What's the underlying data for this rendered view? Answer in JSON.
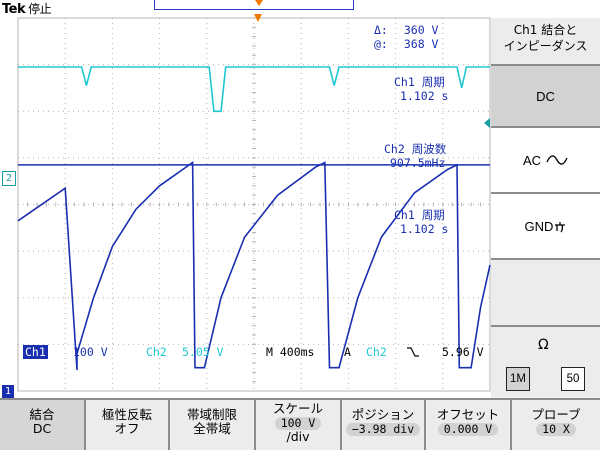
{
  "header": {
    "brand": "Tek",
    "status": "停止"
  },
  "readouts": {
    "delta_label": "Δ:",
    "delta_value": "360 V",
    "at_label": "@:",
    "at_value": "368 V",
    "period_top_label": "Ch1 周期",
    "period_top_value": "1.102 s",
    "freq_label": "Ch2 周波数",
    "freq_value": "907.5mHz",
    "period_mid_label": "Ch1 周期",
    "period_mid_value": "1.102 s"
  },
  "markers": {
    "ch2": "2",
    "ch1": "1"
  },
  "status_line": {
    "ch1_tag": "Ch1",
    "ch1_scale": "100 V",
    "ch2_tag": "Ch2",
    "ch2_scale": "5.05 V",
    "timebase": "M 400ms",
    "trigger_mode": "A",
    "trigger_source": "Ch2",
    "trigger_slope_icon": "falling-edge-icon",
    "trigger_level": "5.96 V"
  },
  "side_menu": {
    "title_line1": "Ch1 結合と",
    "title_line2": "インピーダンス",
    "dc": "DC",
    "ac": "AC",
    "gnd": "GND",
    "ohm": "Ω",
    "imp_1m": "1M",
    "imp_50": "50"
  },
  "bottom_menu": {
    "coupling_label": "結合",
    "coupling_value": "DC",
    "invert_label": "極性反転",
    "invert_value": "オフ",
    "bw_label": "帯域制限",
    "bw_value": "全帯域",
    "scale_label": "スケール",
    "scale_value": "100 V",
    "scale_unit": "/div",
    "position_label": "ポジション",
    "position_value": "−3.98 div",
    "offset_label": "オフセット",
    "offset_value": "0.000 V",
    "probe_label": "プローブ",
    "probe_value": "10 X"
  },
  "colors": {
    "ch1": "#1a2fb0",
    "ch2": "#1ec8d2",
    "trigger": "#f07800",
    "menu_selected": "#d6d6d6",
    "menu_bg": "#ececec"
  },
  "chart_data": {
    "type": "line",
    "x_unit": "div",
    "xlim": [
      0,
      10
    ],
    "ylim": [
      -4,
      4
    ],
    "series": [
      {
        "name": "Ch1",
        "description": "sawtooth charging curve, period 1.102 s",
        "points": [
          [
            0,
            -0.35
          ],
          [
            1.0,
            0.35
          ],
          [
            1.25,
            -3.55
          ],
          [
            1.25,
            -3.2
          ],
          [
            1.6,
            -2.0
          ],
          [
            2.0,
            -0.9
          ],
          [
            2.5,
            -0.1
          ],
          [
            3.0,
            0.4
          ],
          [
            3.7,
            0.9
          ],
          [
            3.75,
            -3.5
          ],
          [
            3.95,
            -3.5
          ],
          [
            4.3,
            -2.0
          ],
          [
            4.8,
            -0.7
          ],
          [
            5.5,
            0.2
          ],
          [
            6.3,
            0.8
          ],
          [
            6.5,
            0.9
          ],
          [
            6.6,
            -3.5
          ],
          [
            6.8,
            -3.5
          ],
          [
            7.2,
            -2.0
          ],
          [
            7.7,
            -0.7
          ],
          [
            8.4,
            0.25
          ],
          [
            9.1,
            0.75
          ],
          [
            9.3,
            0.85
          ],
          [
            9.35,
            -3.5
          ],
          [
            9.6,
            -3.5
          ],
          [
            9.8,
            -2.2
          ],
          [
            10.0,
            -1.3
          ]
        ]
      },
      {
        "name": "Ch2",
        "description": "pulse train near top, dips every period",
        "points": [
          [
            0,
            2.95
          ],
          [
            1.35,
            2.95
          ],
          [
            1.45,
            2.55
          ],
          [
            1.55,
            2.95
          ],
          [
            4.05,
            2.95
          ],
          [
            4.15,
            2.0
          ],
          [
            4.3,
            2.0
          ],
          [
            4.4,
            2.95
          ],
          [
            6.6,
            2.95
          ],
          [
            6.7,
            2.55
          ],
          [
            6.8,
            2.95
          ],
          [
            9.3,
            2.95
          ],
          [
            9.4,
            2.5
          ],
          [
            9.5,
            2.95
          ],
          [
            10.0,
            2.95
          ]
        ]
      }
    ]
  }
}
